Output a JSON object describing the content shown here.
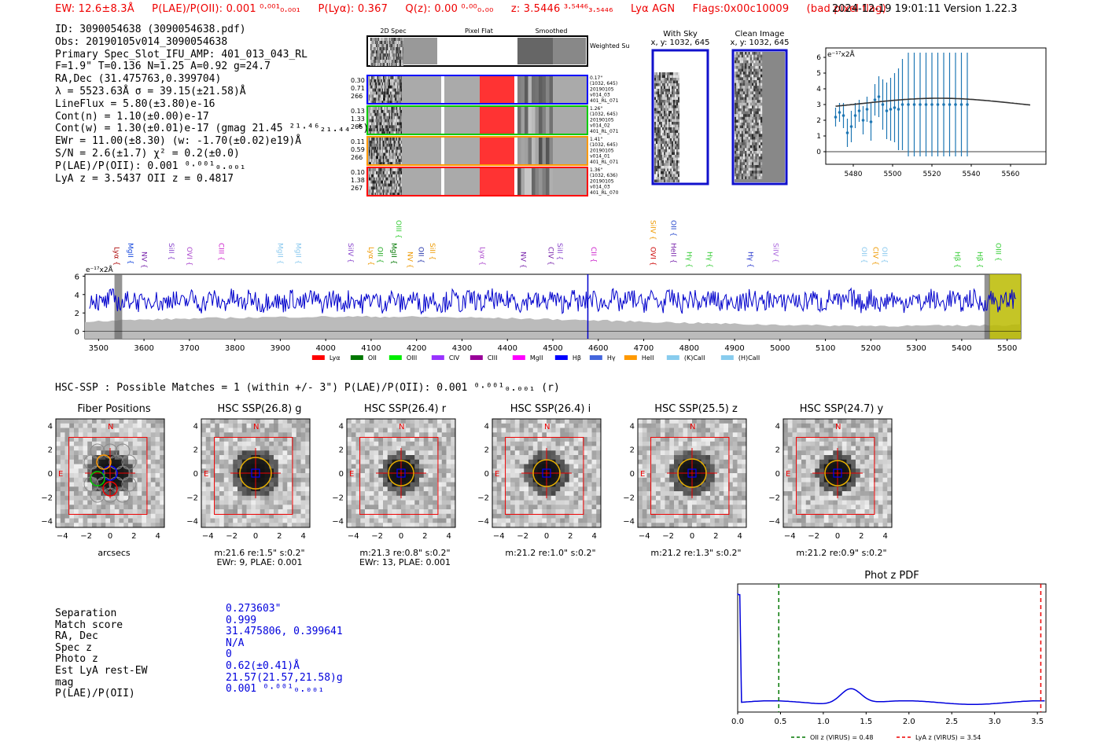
{
  "header": {
    "ew": "EW: 12.6±8.3Å",
    "plae": "P(LAE)/P(OII): 0.001 ⁰·⁰⁰¹₀.₀₀₁",
    "plya": "P(Lyα): 0.367",
    "qz": "Q(z): 0.00 ⁰·⁰⁰₀.₀₀",
    "z": "z: 3.5446 ³·⁵⁴⁴⁶₃.₅₄₄₆",
    "line": "Lyα  AGN",
    "flags": "Flags:0x00c10009",
    "badpix": "(bad pixel flag)",
    "timestamp": "2024-12-19 19:01:11  Version 1.22.3"
  },
  "info": {
    "id": "ID: 3090054638 (3090054638.pdf)",
    "obs": "Obs: 20190105v014_3090054638",
    "primary": "Primary Spec_Slot_IFU_AMP: 401_013_043_RL",
    "params": "F=1.9\"  T=0.136  N=1.25  A=0.92  g=24.7",
    "radec": "RA,Dec (31.475763,0.399704)",
    "lambda": "λ = 5523.63Å  σ = 39.15(±21.58)Å",
    "lineflux": "LineFlux = 5.80(±3.80)e-16",
    "contn": "Cont(n) = 1.10(±0.00)e-17",
    "contw": "Cont(w) = 1.30(±0.01)e-17 (gmag 21.45 ²¹·⁴⁶₂₁.₄₄ *)",
    "ewr": "EWr = 11.00(±8.30) (w: -1.70(±0.02)e19)Å",
    "sn": "S/N = 2.6(±1.7)  χ² = 0.2(±0.0)",
    "plae": "P(LAE)/P(OII): 0.001 ⁰·⁰⁰¹₀.₀₀₁",
    "lyaz": "LyA z = 3.5437   OII z = 0.4817"
  },
  "fiber_panel": {
    "col_titles": [
      "2D Spec",
      "Pixel Flat",
      "Smoothed"
    ],
    "weighted": "Weighted Sum",
    "rows": [
      {
        "vals": "0.30\n0.71\n266",
        "meta": [
          "0.17\"",
          "(1032, 645)",
          "20190105",
          "v014_03",
          "401_RL_071"
        ],
        "color": "#0000ff"
      },
      {
        "vals": "0.13\n1.33\n266",
        "meta": [
          "1.26\"",
          "(1032, 645)",
          "20190105",
          "v014_02",
          "401_RL_071"
        ],
        "color": "#00cc00"
      },
      {
        "vals": "0.11\n0.59\n266",
        "meta": [
          "1.41\"",
          "(1032, 645)",
          "20190105",
          "v014_01",
          "401_RL_071"
        ],
        "color": "#ff9900"
      },
      {
        "vals": "0.10\n1.38\n267",
        "meta": [
          "1.36\"",
          "(1032, 636)",
          "20190105",
          "v014_03",
          "401_RL_070"
        ],
        "color": "#ff0000"
      }
    ]
  },
  "sky_panels": {
    "with_sky": "With Sky",
    "with_sky_xy": "x, y: 1032, 645",
    "clean": "Clean Image",
    "clean_xy": "x, y: 1032, 645"
  },
  "chart_data": [
    {
      "name": "line-zoom",
      "type": "line",
      "ylabel": "e⁻¹⁷x2Å",
      "xlim": [
        5466,
        5578
      ],
      "ylim": [
        -0.8,
        6.6
      ],
      "xticks": [
        5480,
        5500,
        5520,
        5540,
        5560
      ],
      "yticks": [
        0,
        1,
        2,
        3,
        4,
        5,
        6
      ],
      "points": [
        {
          "x": 5471,
          "y": 2.2,
          "e": 0.6
        },
        {
          "x": 5473,
          "y": 2.5,
          "e": 0.6
        },
        {
          "x": 5475,
          "y": 2.3,
          "e": 0.8
        },
        {
          "x": 5477,
          "y": 1.2,
          "e": 0.9
        },
        {
          "x": 5479,
          "y": 1.6,
          "e": 1.0
        },
        {
          "x": 5481,
          "y": 2.3,
          "e": 0.8
        },
        {
          "x": 5483,
          "y": 2.6,
          "e": 0.7
        },
        {
          "x": 5485,
          "y": 2.0,
          "e": 0.9
        },
        {
          "x": 5487,
          "y": 2.7,
          "e": 0.8
        },
        {
          "x": 5489,
          "y": 1.9,
          "e": 1.2
        },
        {
          "x": 5491,
          "y": 3.3,
          "e": 1.0
        },
        {
          "x": 5493,
          "y": 3.5,
          "e": 1.3
        },
        {
          "x": 5495,
          "y": 3.0,
          "e": 1.6
        },
        {
          "x": 5497,
          "y": 2.6,
          "e": 1.8
        },
        {
          "x": 5499,
          "y": 2.7,
          "e": 2.0
        },
        {
          "x": 5501,
          "y": 2.8,
          "e": 2.2
        },
        {
          "x": 5503,
          "y": 2.7,
          "e": 2.6
        },
        {
          "x": 5505,
          "y": 3.0,
          "e": 2.9
        },
        {
          "x": 5508,
          "y": 3.0,
          "e": 3.3
        },
        {
          "x": 5511,
          "y": 3.0,
          "e": 3.4
        },
        {
          "x": 5514,
          "y": 3.0,
          "e": 3.4
        },
        {
          "x": 5517,
          "y": 3.0,
          "e": 3.4
        },
        {
          "x": 5520,
          "y": 3.0,
          "e": 3.4
        },
        {
          "x": 5523,
          "y": 3.0,
          "e": 3.4
        },
        {
          "x": 5526,
          "y": 3.0,
          "e": 3.4
        },
        {
          "x": 5529,
          "y": 3.0,
          "e": 3.4
        },
        {
          "x": 5532,
          "y": 3.0,
          "e": 3.4
        },
        {
          "x": 5535,
          "y": 3.0,
          "e": 3.4
        },
        {
          "x": 5538,
          "y": 3.0,
          "e": 3.4
        }
      ],
      "model": {
        "center": 5523.63,
        "sigma": 39.15,
        "amp": 0.85,
        "base": 2.55
      }
    },
    {
      "name": "full-spectrum",
      "type": "line",
      "ylabel": "e⁻¹⁷x2Å",
      "xlim": [
        3470,
        5530
      ],
      "ylim": [
        -0.8,
        6.2
      ],
      "xticks": [
        3500,
        3600,
        3700,
        3800,
        3900,
        4000,
        4100,
        4200,
        4300,
        4400,
        4500,
        4600,
        4700,
        4800,
        4900,
        5000,
        5100,
        5200,
        5300,
        5400,
        5500
      ],
      "yticks": [
        0,
        2,
        4,
        6
      ],
      "series_mean": 3.3,
      "series_amplitude": 1.0,
      "line_markers": [
        {
          "label": "Lyα",
          "x": 3530,
          "color": "#aa0000"
        },
        {
          "label": "MgII",
          "x": 3560,
          "color": "#1144dd"
        },
        {
          "label": "NV",
          "x": 3590,
          "color": "#7722aa"
        },
        {
          "label": "SiII",
          "x": 3650,
          "color": "#8844cc"
        },
        {
          "label": "OVI",
          "x": 3690,
          "color": "#aa44cc"
        },
        {
          "label": "CIII",
          "x": 3760,
          "color": "#cc22cc"
        },
        {
          "label": "MgII",
          "x": 3890,
          "color": "#88c8ee"
        },
        {
          "label": "MgII",
          "x": 3930,
          "color": "#88c8ee"
        },
        {
          "label": "SiIV",
          "x": 4045,
          "color": "#8844cc"
        },
        {
          "label": "Lyα",
          "x": 4090,
          "color": "#ee9900"
        },
        {
          "label": "OII",
          "x": 4110,
          "color": "#22aa22"
        },
        {
          "label": "MgII",
          "x": 4140,
          "color": "#007700"
        },
        {
          "label": "NV",
          "x": 4175,
          "color": "#ee9900"
        },
        {
          "label": "OII",
          "x": 4200,
          "color": "#2233aa"
        },
        {
          "label": "SiII",
          "x": 4225,
          "color": "#ee9900"
        },
        {
          "label": "Lyα",
          "x": 4335,
          "color": "#aa44cc"
        },
        {
          "label": "NV",
          "x": 4425,
          "color": "#7722aa"
        },
        {
          "label": "CIV",
          "x": 4485,
          "color": "#7722aa"
        },
        {
          "label": "SiII",
          "x": 4505,
          "color": "#8844cc"
        },
        {
          "label": "CII",
          "x": 4580,
          "color": "#cc22cc"
        },
        {
          "label": "OVI",
          "x": 4710,
          "color": "#cc0000"
        },
        {
          "label": "HeII",
          "x": 4755,
          "color": "#7722aa"
        },
        {
          "label": "Hγ",
          "x": 4790,
          "color": "#33cc33"
        },
        {
          "label": "Hγ",
          "x": 4835,
          "color": "#33cc33"
        },
        {
          "label": "Hγ",
          "x": 4925,
          "color": "#2233cc"
        },
        {
          "label": "SiIV",
          "x": 4980,
          "color": "#aa66dd"
        },
        {
          "label": "OII",
          "x": 5175,
          "color": "#88c8ee"
        },
        {
          "label": "CIV",
          "x": 5200,
          "color": "#ee9900"
        },
        {
          "label": "OII",
          "x": 5220,
          "color": "#88c8ee"
        },
        {
          "label": "Hβ",
          "x": 5380,
          "color": "#33cc33"
        },
        {
          "label": "Hβ",
          "x": 5430,
          "color": "#33cc33"
        },
        {
          "label": "OIII",
          "x": 5470,
          "color": "#33cc33"
        }
      ],
      "upper_markers": [
        {
          "label": "OIII",
          "x": 4150,
          "color": "#33cc33"
        },
        {
          "label": "SiIV",
          "x": 4710,
          "color": "#ee9900"
        },
        {
          "label": "OII",
          "x": 4755,
          "color": "#2244cc"
        }
      ],
      "highlight_x": [
        5460,
        5530
      ],
      "legend": [
        {
          "label": "Lyα",
          "color": "#ff0000"
        },
        {
          "label": "OII",
          "color": "#007700"
        },
        {
          "label": "OIII",
          "color": "#00ee00"
        },
        {
          "label": "CIV",
          "color": "#9933ff"
        },
        {
          "label": "CIII",
          "color": "#990099"
        },
        {
          "label": "MgII",
          "color": "#ff00ff"
        },
        {
          "label": "Hβ",
          "color": "#0000ff"
        },
        {
          "label": "Hγ",
          "color": "#4466dd"
        },
        {
          "label": "HeII",
          "color": "#ff9900"
        },
        {
          "label": "(K)CaII",
          "color": "#88ccee"
        },
        {
          "label": "(H)CaII",
          "color": "#88ccee"
        }
      ]
    },
    {
      "name": "phot-z-pdf",
      "type": "line",
      "title": "Phot z PDF",
      "xlim": [
        0.0,
        3.6
      ],
      "ylim": [
        0,
        1
      ],
      "xticks": [
        0.0,
        0.5,
        1.0,
        1.5,
        2.0,
        2.5,
        3.0,
        3.5
      ],
      "xticklabels": [
        "0.0",
        "0.5",
        "1.0",
        "1.5",
        "2.0",
        "2.5",
        "3.0",
        "3.5"
      ],
      "oii_z": 0.48,
      "lya_z": 3.54,
      "legend": [
        "OII z (VIRUS) = 0.48",
        "LyA z (VIRUS) = 3.54"
      ]
    }
  ],
  "hsc": {
    "header": "HSC-SSP : Possible Matches = 1 (within +/- 3\")  P(LAE)/P(OII): 0.001 ⁰·⁰⁰¹₀.₀₀₁ (r)",
    "ticks": [
      "−4",
      "−2",
      "0",
      "2",
      "4"
    ],
    "yticks": [
      "4",
      "2",
      "0",
      "−2",
      "−4"
    ],
    "n_label": "N",
    "e_label": "E",
    "panels": [
      {
        "title": "Fiber Positions",
        "cap1": "arcsecs",
        "cap2": "",
        "blob": 0.9
      },
      {
        "title": "HSC SSP(26.8) g",
        "cap1": "m:21.6  re:1.5\"  s:0.2\"",
        "cap2": "EWr: 9, PLAE: 0.001",
        "blob": 1.0
      },
      {
        "title": "HSC SSP(26.4) r",
        "cap1": "m:21.3  re:0.8\"  s:0.2\"",
        "cap2": "EWr: 13, PLAE: 0.001",
        "blob": 0.6
      },
      {
        "title": "HSC SSP(26.4) i",
        "cap1": "m:21.2  re:1.0\"  s:0.2\"",
        "cap2": "",
        "blob": 0.7
      },
      {
        "title": "HSC SSP(25.5) z",
        "cap1": "m:21.2  re:1.3\"  s:0.2\"",
        "cap2": "",
        "blob": 0.8
      },
      {
        "title": "HSC SSP(24.7) y",
        "cap1": "m:21.2  re:0.9\"  s:0.2\"",
        "cap2": "",
        "blob": 0.6
      }
    ]
  },
  "match": {
    "labels": [
      "Separation",
      "Match score",
      "RA, Dec",
      "Spec z",
      "Photo z",
      "Est LyA rest-EW",
      "mag",
      "P(LAE)/P(OII)"
    ],
    "values": [
      "0.273603\"",
      "0.999",
      "31.475806, 0.399641",
      "N/A",
      "0",
      "0.62(±0.41)Å",
      "21.57(21.57,21.58)g",
      "0.001 ⁰·⁰⁰¹₀.₀₀₁"
    ]
  },
  "colors": {
    "accent_red": "#ee0000",
    "accent_blue": "#0000dd",
    "spectrum": "#0000cc"
  }
}
